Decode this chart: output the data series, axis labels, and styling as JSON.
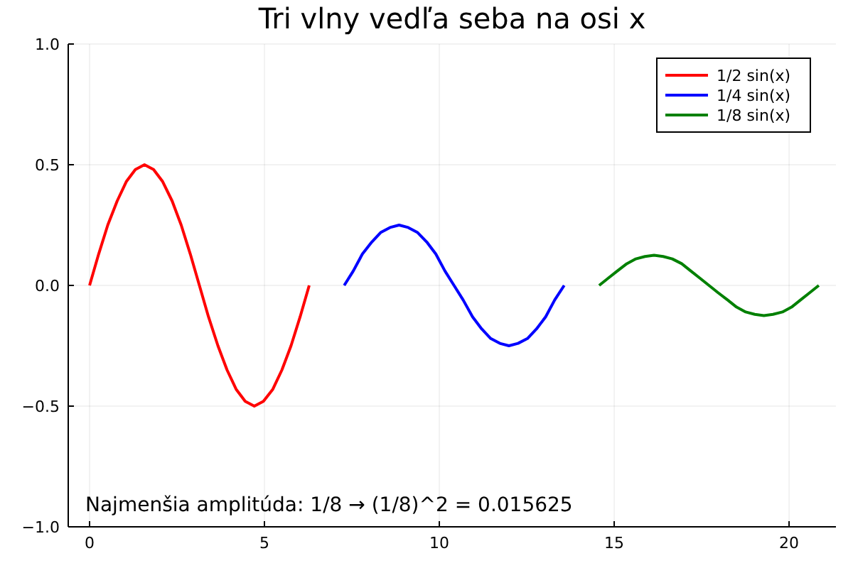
{
  "chart_data": {
    "type": "line",
    "title": "Tri vlny vedľa seba na osi x",
    "xlim": [
      -0.61,
      21.34
    ],
    "ylim": [
      -1,
      1
    ],
    "xticks": [
      0,
      5,
      10,
      15,
      20
    ],
    "yticks": [
      {
        "value": -1,
        "label": "−1.0"
      },
      {
        "value": -0.5,
        "label": "−0.5"
      },
      {
        "value": 0,
        "label": "0.0"
      },
      {
        "value": 0.5,
        "label": "0.5"
      },
      {
        "value": 1,
        "label": "1.0"
      }
    ],
    "grid": true,
    "legend": "top right",
    "line_style": "solid",
    "marker": "none",
    "annotations": [
      "Najmenšia amplitúda: 1/8 → (1/8)^2 = 0.015625"
    ],
    "series": [
      {
        "name": "1/2 sin(x)",
        "color": "#ff0000",
        "x": [
          0,
          0.26,
          0.52,
          0.79,
          1.05,
          1.31,
          1.57,
          1.83,
          2.09,
          2.36,
          2.62,
          2.88,
          3.14,
          3.4,
          3.67,
          3.93,
          4.19,
          4.45,
          4.71,
          4.97,
          5.24,
          5.5,
          5.76,
          6.02,
          6.28
        ],
        "values": [
          0,
          0.13,
          0.25,
          0.35,
          0.43,
          0.48,
          0.5,
          0.48,
          0.43,
          0.35,
          0.25,
          0.13,
          0,
          -0.13,
          -0.25,
          -0.35,
          -0.43,
          -0.48,
          -0.5,
          -0.48,
          -0.43,
          -0.35,
          -0.25,
          -0.13,
          0
        ]
      },
      {
        "name": "1/4 sin(x)",
        "color": "#0000ff",
        "x": [
          7.28,
          7.54,
          7.8,
          8.07,
          8.33,
          8.59,
          8.85,
          9.11,
          9.37,
          9.64,
          9.9,
          10.16,
          10.42,
          10.68,
          10.95,
          11.21,
          11.47,
          11.73,
          11.99,
          12.25,
          12.52,
          12.78,
          13.04,
          13.3,
          13.57
        ],
        "values": [
          0,
          0.06,
          0.13,
          0.18,
          0.22,
          0.24,
          0.25,
          0.24,
          0.22,
          0.18,
          0.13,
          0.06,
          0,
          -0.06,
          -0.13,
          -0.18,
          -0.22,
          -0.24,
          -0.25,
          -0.24,
          -0.22,
          -0.18,
          -0.13,
          -0.06,
          0
        ]
      },
      {
        "name": "1/8 sin(x)",
        "color": "#008000",
        "x": [
          14.57,
          14.83,
          15.09,
          15.36,
          15.62,
          15.88,
          16.14,
          16.4,
          16.66,
          16.93,
          17.19,
          17.45,
          17.71,
          17.97,
          18.24,
          18.5,
          18.76,
          19.02,
          19.28,
          19.54,
          19.81,
          20.07,
          20.33,
          20.59,
          20.85
        ],
        "values": [
          0,
          0.03,
          0.06,
          0.09,
          0.11,
          0.12,
          0.125,
          0.12,
          0.11,
          0.09,
          0.06,
          0.03,
          0,
          -0.03,
          -0.06,
          -0.09,
          -0.11,
          -0.12,
          -0.125,
          -0.12,
          -0.11,
          -0.09,
          -0.06,
          -0.03,
          0
        ]
      }
    ]
  }
}
